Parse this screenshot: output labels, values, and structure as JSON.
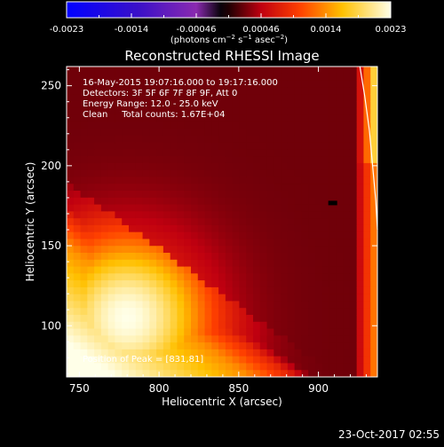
{
  "chart_data": {
    "type": "heatmap",
    "title": "Reconstructed RHESSI Image",
    "xlabel": "Heliocentric X (arcsec)",
    "ylabel": "Heliocentric Y (arcsec)",
    "xlim": [
      742,
      937
    ],
    "ylim": [
      68,
      262
    ],
    "x_ticks": [
      750,
      800,
      850,
      900
    ],
    "y_ticks": [
      100,
      150,
      200,
      250
    ],
    "colorbar": {
      "range": [
        -0.0023,
        0.0023
      ],
      "ticks": [
        "-0.0023",
        "-0.0014",
        "-0.00046",
        "0.00046",
        "0.0014",
        "0.0023"
      ],
      "label": "(photons cm⁻² s⁻¹ asec⁻²)",
      "label_prefix": "(photons cm",
      "label_exp1": "−2",
      "label_mid1": " s",
      "label_exp2": "−1",
      "label_mid2": " asec",
      "label_exp3": "−2",
      "label_suffix": ")",
      "colormap_stops": [
        {
          "v": 0.0,
          "color": "#0000ff"
        },
        {
          "v": 0.22,
          "color": "#3a10c8"
        },
        {
          "v": 0.4,
          "color": "#8a2ab0"
        },
        {
          "v": 0.48,
          "color": "#000000"
        },
        {
          "v": 0.6,
          "color": "#c00010"
        },
        {
          "v": 0.72,
          "color": "#ff4000"
        },
        {
          "v": 0.85,
          "color": "#ffc000"
        },
        {
          "v": 1.0,
          "color": "#ffffe8"
        }
      ]
    },
    "annotations": [
      "16-May-2015 19:07:16.000 to 19:17:16.000",
      "Detectors: 3F 5F 6F 7F 8F 9F, Att 0",
      "Energy Range: 12.0 - 25.0 keV",
      "Clean     Total counts: 1.67E+04"
    ],
    "peak_label": "Position of Peak = [831,81]",
    "peak_value": "0.0023",
    "limb_curve": [
      {
        "x": 926,
        "y": 262
      },
      {
        "x": 929,
        "y": 244
      },
      {
        "x": 932,
        "y": 222
      },
      {
        "x": 934,
        "y": 200
      },
      {
        "x": 936,
        "y": 178
      },
      {
        "x": 937,
        "y": 160
      }
    ],
    "heatmap_model": {
      "cells": 45,
      "stripe_slope": -0.72,
      "stripes": [
        {
          "offset": 280,
          "value": 0.52
        },
        {
          "offset": 212,
          "value": 0.38
        },
        {
          "offset": 155,
          "value": 0.45
        },
        {
          "offset": 95,
          "value": 0.33
        }
      ]
    }
  },
  "footer": {
    "timestamp": "23-Oct-2017 02:55"
  }
}
